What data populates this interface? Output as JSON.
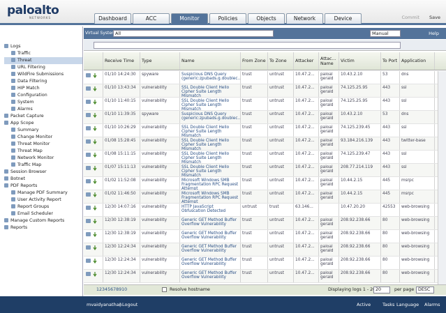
{
  "header": {
    "logo": "paloalto",
    "logo_sub": "NETWORKS",
    "tabs": [
      "Dashboard",
      "ACC",
      "Monitor",
      "Policies",
      "Objects",
      "Network",
      "Device"
    ],
    "active_tab": 2,
    "actions": [
      "Commit",
      "Save"
    ]
  },
  "sidebar": [
    {
      "label": "Logs",
      "children": [
        {
          "label": "Traffic"
        },
        {
          "label": "Threat"
        },
        {
          "label": "URL Filtering"
        },
        {
          "label": "WildFire Submissions"
        },
        {
          "label": "Data Filtering"
        },
        {
          "label": "HIP Match"
        },
        {
          "label": "Configuration"
        },
        {
          "label": "System"
        },
        {
          "label": "Alarms"
        }
      ]
    },
    {
      "label": "Packet Capture"
    },
    {
      "label": "App Scope",
      "children": [
        {
          "label": "Summary"
        },
        {
          "label": "Change Monitor"
        },
        {
          "label": "Threat Monitor"
        },
        {
          "label": "Threat Map"
        },
        {
          "label": "Network Monitor"
        },
        {
          "label": "Traffic Map"
        }
      ]
    },
    {
      "label": "Session Browser"
    },
    {
      "label": "Botnet"
    },
    {
      "label": "PDF Reports",
      "children": [
        {
          "label": "Manage PDF Summary"
        },
        {
          "label": "User Activity Report"
        },
        {
          "label": "Report Groups"
        },
        {
          "label": "Email Scheduler"
        }
      ]
    },
    {
      "label": "Manage Custom Reports"
    },
    {
      "label": "Reports"
    }
  ],
  "toolbar": {
    "vsys_label": "Virtual System",
    "vsys_value": "All",
    "refresh": "Manual",
    "help": "Help"
  },
  "table": {
    "columns": [
      "Receive Time",
      "Type",
      "Name",
      "From Zone",
      "To Zone",
      "Attacker",
      "Attac... Name",
      "Victim",
      "To Port",
      "Application"
    ],
    "rows": [
      [
        "01/10 14:24:30",
        "spyware",
        "Suspicious DNS Query (generic:zpubads.g.doublec...",
        "trust",
        "untrust",
        "10.47.2...",
        "paloal gerald",
        "10.43.2.10",
        "53",
        "dns"
      ],
      [
        "01/10 13:43:34",
        "vulnerability",
        "SSL Double Client Hello Cipher Suite Length Mismatch",
        "trust",
        "untrust",
        "10.47.2...",
        "paloal gerald",
        "74.125.25.95",
        "443",
        "ssl"
      ],
      [
        "01/10 11:40:15",
        "vulnerability",
        "SSL Double Client Hello Cipher Suite Length Mismatch",
        "trust",
        "untrust",
        "10.47.2...",
        "paloal gerald",
        "74.125.25.95",
        "443",
        "ssl"
      ],
      [
        "01/10 11:39:35",
        "spyware",
        "Suspicious DNS Query (generic:zpubads.g.doublec...",
        "trust",
        "untrust",
        "10.47.2...",
        "paloal gerald",
        "10.43.2.10",
        "53",
        "dns"
      ],
      [
        "01/10 10:26:29",
        "vulnerability",
        "SSL Double Client Hello Cipher Suite Length Mismatch",
        "trust",
        "untrust",
        "10.47.2...",
        "paloal gerald",
        "74.125.239.45",
        "443",
        "ssl"
      ],
      [
        "01/08 15:28:45",
        "vulnerability",
        "SSL Double Client Hello Cipher Suite Length Mismatch",
        "trust",
        "untrust",
        "10.47.2...",
        "paloal gerald",
        "93.184.216.139",
        "443",
        "twitter-base"
      ],
      [
        "01/08 15:11:15",
        "vulnerability",
        "SSL Double Client Hello Cipher Suite Length Mismatch",
        "trust",
        "untrust",
        "10.47.2...",
        "paloal gerald",
        "74.125.239.47",
        "443",
        "ssl"
      ],
      [
        "01/07 15:11:13",
        "vulnerability",
        "SSL Double Client Hello Cipher Suite Length Mismatch",
        "trust",
        "untrust",
        "10.47.2...",
        "paloal gerald",
        "208.77.214.119",
        "443",
        "ssl"
      ],
      [
        "01/02 11:52:08",
        "vulnerability",
        "Microsoft Windows SMB Fragmentation RPC Request Attempt",
        "trust",
        "untrust",
        "10.47.2...",
        "paloal gerald",
        "10.44.2.15",
        "445",
        "msrpc"
      ],
      [
        "01/02 11:46:50",
        "vulnerability",
        "Microsoft Windows SMB Fragmentation RPC Request Attempt",
        "trust",
        "untrust",
        "10.47.2...",
        "paloal gerald",
        "10.44.2.15",
        "445",
        "msrpc"
      ],
      [
        "12/30 14:07:16",
        "vulnerability",
        "HTTP JavaScript Obfuscation Detected",
        "untrust",
        "trust",
        "63.146...",
        null,
        "10.47.20.20",
        "42553",
        "web-browsing"
      ],
      [
        "12/30 12:38:19",
        "vulnerability",
        "Generic GET Method Buffer Overflow Vulnerability",
        "trust",
        "untrust",
        "10.47.2...",
        "paloal gerald",
        "208.92.238.66",
        "80",
        "web-browsing"
      ],
      [
        "12/30 12:38:19",
        "vulnerability",
        "Generic GET Method Buffer Overflow Vulnerability",
        "trust",
        "untrust",
        "10.47.2...",
        "paloal gerald",
        "208.92.238.66",
        "80",
        "web-browsing"
      ],
      [
        "12/30 12:24:34",
        "vulnerability",
        "Generic GET Method Buffer Overflow Vulnerability",
        "trust",
        "untrust",
        "10.47.2...",
        "paloal gerald",
        "208.92.238.66",
        "80",
        "web-browsing"
      ],
      [
        "12/30 12:24:34",
        "vulnerability",
        "Generic GET Method Buffer Overflow Vulnerability",
        "trust",
        "untrust",
        "10.47.2...",
        "paloal gerald",
        "208.92.238.66",
        "80",
        "web-browsing"
      ],
      [
        "12/30 12:24:34",
        "vulnerability",
        "Generic GET Method Buffer Overflow Vulnerability",
        "trust",
        "untrust",
        "10.47.2...",
        "paloal gerald",
        "208.92.238.66",
        "80",
        "web-browsing"
      ]
    ]
  },
  "pager": {
    "pages": [
      1,
      2,
      3,
      4,
      5,
      6,
      7,
      8,
      9,
      10
    ],
    "resolve": "Resolve hostname",
    "displaying": "Displaying logs 1 - 20",
    "per_page_value": "20",
    "per_page": "per page",
    "order": "DESC"
  },
  "status": {
    "user": "mvaidyanathan",
    "logout": "Logout",
    "active": "Active",
    "tasks": "Tasks",
    "language": "Language",
    "alarms": "Alarms"
  }
}
